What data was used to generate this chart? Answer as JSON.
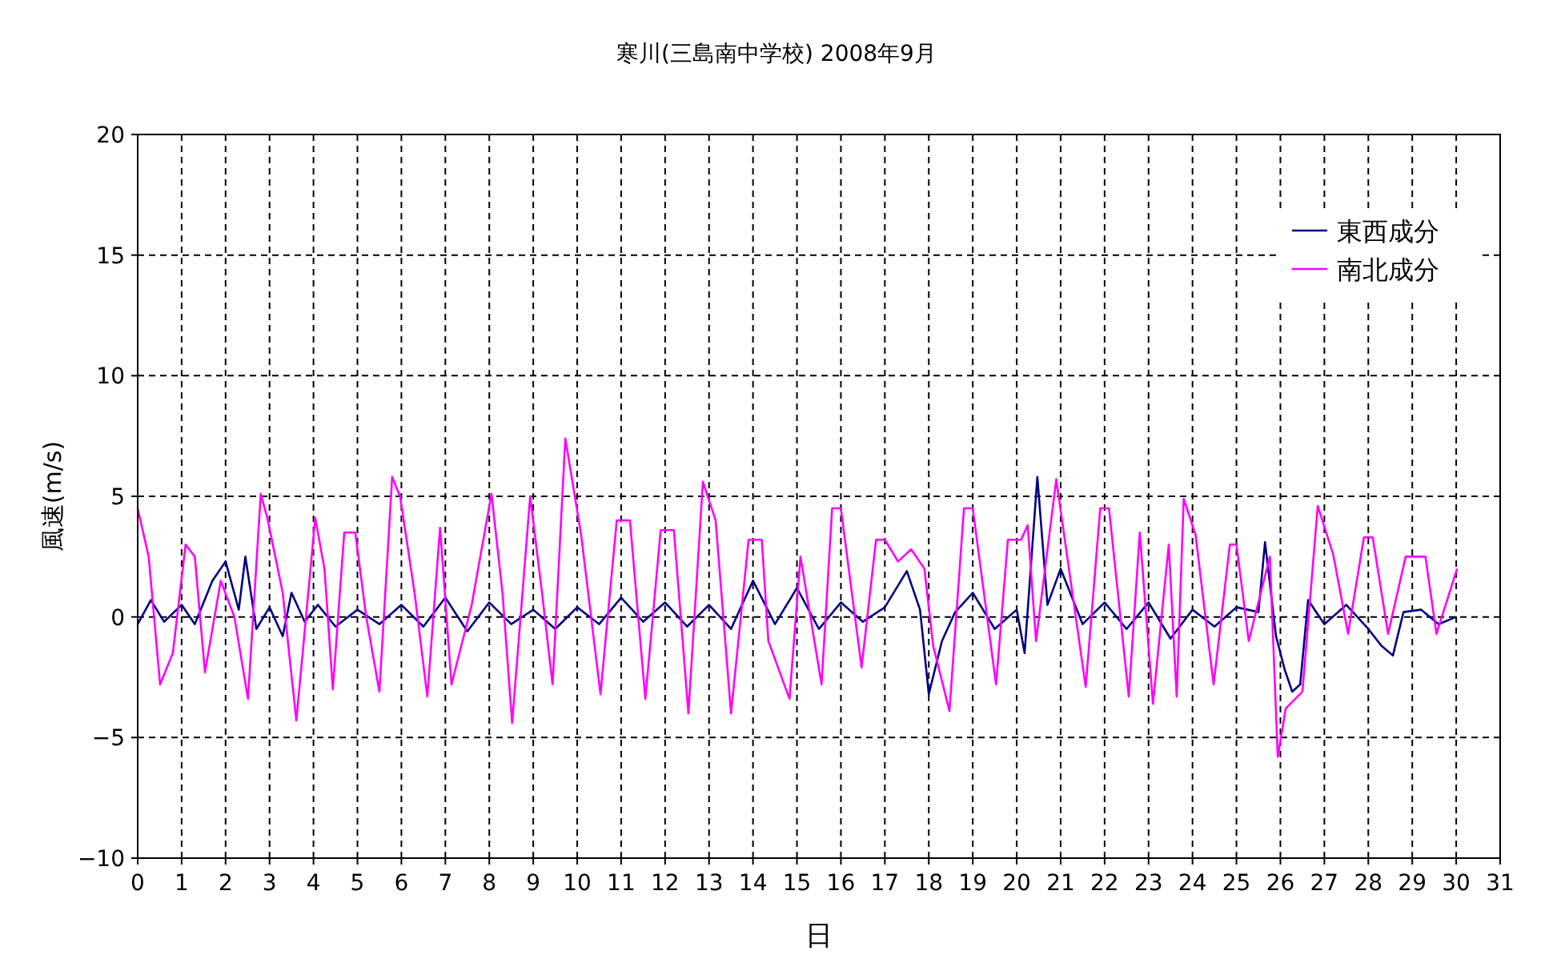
{
  "chart_data": {
    "type": "line",
    "title": "寒川(三島南中学校) 2008年9月",
    "xlabel": "日",
    "ylabel": "風速(m/s)",
    "xlim": [
      0,
      31
    ],
    "xticks": [
      0,
      1,
      2,
      3,
      4,
      5,
      6,
      7,
      8,
      9,
      10,
      11,
      12,
      13,
      14,
      15,
      16,
      17,
      18,
      19,
      20,
      21,
      22,
      23,
      24,
      25,
      26,
      27,
      28,
      29,
      30,
      31
    ],
    "ylim": [
      -10,
      20
    ],
    "yticks": [
      -10,
      -5,
      0,
      5,
      10,
      15,
      20
    ],
    "grid": true,
    "legend": "top right",
    "series": [
      {
        "name": "東西成分",
        "color": "#000080",
        "x": [
          0,
          0.3,
          0.6,
          1.0,
          1.3,
          1.7,
          2.0,
          2.3,
          2.45,
          2.7,
          3.0,
          3.3,
          3.5,
          3.8,
          4.1,
          4.5,
          5.0,
          5.5,
          6.0,
          6.5,
          7.0,
          7.5,
          8.0,
          8.5,
          9.0,
          9.5,
          10.0,
          10.5,
          11.0,
          11.5,
          12.0,
          12.5,
          13.0,
          13.5,
          14.0,
          14.5,
          15.0,
          15.5,
          16.0,
          16.5,
          17.0,
          17.5,
          17.8,
          18.0,
          18.3,
          18.6,
          19.0,
          19.5,
          20.0,
          20.18,
          20.47,
          20.7,
          21.0,
          21.5,
          22.0,
          22.5,
          23.0,
          23.5,
          24.0,
          24.5,
          25.0,
          25.5,
          25.65,
          25.9,
          26.1,
          26.27,
          26.45,
          26.63,
          27.0,
          27.5,
          28.0,
          28.3,
          28.56,
          28.8,
          29.2,
          29.6,
          30.0
        ],
        "values": [
          -0.3,
          0.7,
          -0.2,
          0.5,
          -0.3,
          1.5,
          2.3,
          0.3,
          2.5,
          -0.5,
          0.4,
          -0.8,
          1.0,
          -0.2,
          0.5,
          -0.4,
          0.3,
          -0.3,
          0.5,
          -0.4,
          0.8,
          -0.6,
          0.6,
          -0.3,
          0.3,
          -0.5,
          0.4,
          -0.3,
          0.8,
          -0.2,
          0.6,
          -0.4,
          0.5,
          -0.5,
          1.5,
          -0.3,
          1.2,
          -0.5,
          0.6,
          -0.2,
          0.4,
          1.9,
          0.3,
          -3.2,
          -1.0,
          0.2,
          1.0,
          -0.5,
          0.3,
          -1.5,
          5.8,
          0.5,
          2.0,
          -0.3,
          0.6,
          -0.5,
          0.6,
          -0.9,
          0.3,
          -0.4,
          0.4,
          0.2,
          3.1,
          -0.8,
          -2.2,
          -3.1,
          -2.8,
          0.7,
          -0.3,
          0.5,
          -0.5,
          -1.2,
          -1.6,
          0.2,
          0.3,
          -0.3,
          0
        ]
      },
      {
        "name": "南北成分",
        "color": "#ff00ff",
        "x": [
          0,
          0.25,
          0.51,
          0.8,
          1.09,
          1.3,
          1.53,
          1.89,
          2.2,
          2.51,
          2.8,
          2.95,
          3.3,
          3.61,
          4.04,
          4.25,
          4.44,
          4.7,
          4.95,
          5.2,
          5.5,
          5.79,
          5.97,
          6.3,
          6.59,
          6.88,
          7.14,
          7.6,
          8.05,
          8.3,
          8.52,
          8.93,
          9.2,
          9.44,
          9.73,
          10.09,
          10.53,
          10.9,
          11.2,
          11.55,
          11.9,
          12.2,
          12.53,
          12.86,
          13.15,
          13.5,
          13.9,
          14.2,
          14.35,
          14.83,
          15.08,
          15.56,
          15.8,
          16.0,
          16.47,
          16.8,
          17.0,
          17.3,
          17.6,
          17.9,
          18.1,
          18.47,
          18.8,
          19.0,
          19.53,
          19.8,
          20.1,
          20.25,
          20.44,
          20.9,
          21.57,
          21.9,
          22.1,
          22.55,
          22.8,
          23.1,
          23.46,
          23.64,
          23.8,
          24.07,
          24.48,
          24.85,
          25.0,
          25.28,
          25.76,
          25.94,
          26.12,
          26.5,
          26.85,
          27.2,
          27.54,
          27.9,
          28.1,
          28.45,
          28.85,
          29.3,
          29.55,
          30.02
        ],
        "values": [
          4.5,
          2.5,
          -2.8,
          -1.5,
          3.0,
          2.5,
          -2.3,
          1.5,
          0,
          -3.4,
          5.1,
          4.1,
          1,
          -4.3,
          4.1,
          2,
          -3.0,
          3.5,
          3.5,
          0,
          -3.1,
          5.8,
          5.0,
          1,
          -3.3,
          3.7,
          -2.8,
          0.5,
          5.1,
          1,
          -4.4,
          5.0,
          1,
          -2.8,
          7.4,
          3.4,
          -3.2,
          4,
          4,
          -3.4,
          3.6,
          3.6,
          -4.0,
          5.6,
          4.0,
          -4.0,
          3.2,
          3.2,
          -1.0,
          -3.4,
          2.5,
          -2.8,
          4.5,
          4.5,
          -2.1,
          3.2,
          3.2,
          2.3,
          2.8,
          2.0,
          -1.2,
          -3.9,
          4.5,
          4.5,
          -2.8,
          3.2,
          3.2,
          3.8,
          -1.0,
          5.7,
          -2.9,
          4.5,
          4.5,
          -3.3,
          3.5,
          -3.6,
          3.0,
          -3.3,
          4.9,
          3.4,
          -2.8,
          3.0,
          3.0,
          -1.0,
          2.5,
          -5.8,
          -3.8,
          -3.1,
          4.6,
          2.6,
          -0.7,
          3.3,
          3.3,
          -0.7,
          2.5,
          2.5,
          -0.7,
          2.0
        ]
      }
    ]
  }
}
